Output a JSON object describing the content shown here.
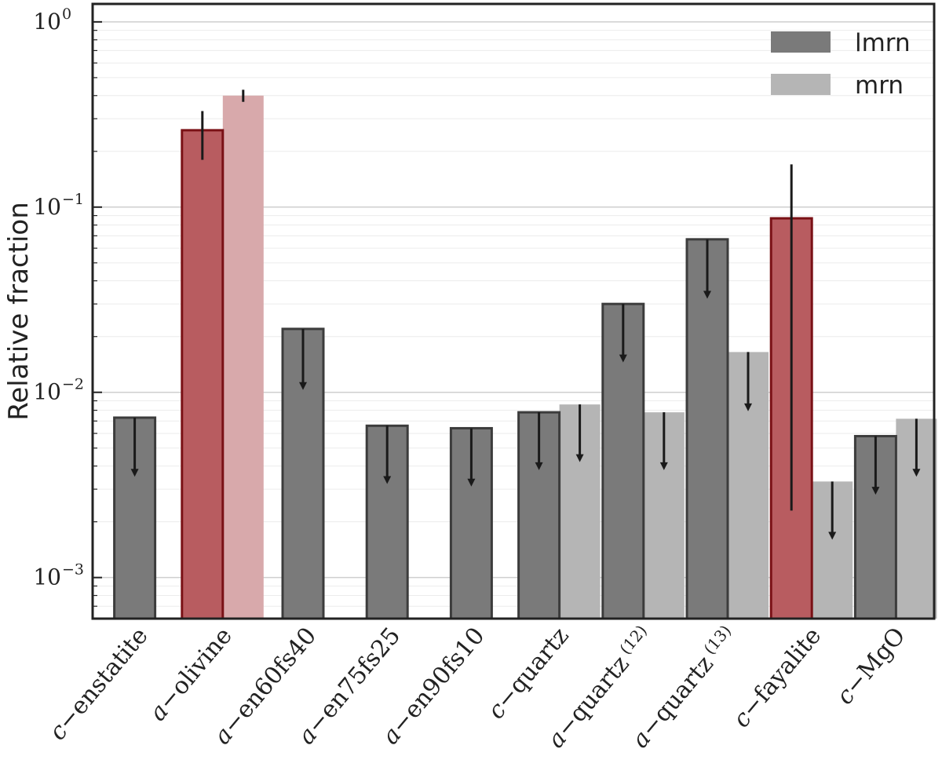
{
  "chart_data": {
    "type": "bar",
    "ylabel": "Relative fraction",
    "xlabel": "",
    "yscale": "log",
    "ylim": [
      0.0006,
      1.25
    ],
    "yticks": [
      {
        "value": 1,
        "base": "10",
        "exp": "0"
      },
      {
        "value": 0.1,
        "base": "10",
        "exp": "−1"
      },
      {
        "value": 0.01,
        "base": "10",
        "exp": "−2"
      },
      {
        "value": 0.001,
        "base": "10",
        "exp": "−3"
      }
    ],
    "grid": true,
    "legend": {
      "placement": "top-right"
    },
    "categories": [
      {
        "prefix": "c",
        "name": "enstatite",
        "sup": ""
      },
      {
        "prefix": "a",
        "name": "olivine",
        "sup": ""
      },
      {
        "prefix": "a",
        "name": "en60fs40",
        "sup": ""
      },
      {
        "prefix": "a",
        "name": "en75fs25",
        "sup": ""
      },
      {
        "prefix": "a",
        "name": "en90fs10",
        "sup": ""
      },
      {
        "prefix": "c",
        "name": "quartz",
        "sup": ""
      },
      {
        "prefix": "a",
        "name": "quartz",
        "sup": "(12)"
      },
      {
        "prefix": "a",
        "name": "quartz",
        "sup": "(13)"
      },
      {
        "prefix": "c",
        "name": "fayalite",
        "sup": ""
      },
      {
        "prefix": "c",
        "name": "MgO",
        "sup": ""
      }
    ],
    "series": [
      {
        "name": "lmrn",
        "color": "#7a7a7a",
        "edge": "#3c3c3c",
        "values": [
          0.0073,
          0.26,
          0.022,
          0.0066,
          0.0064,
          0.0078,
          0.03,
          0.067,
          0.087,
          0.0058
        ],
        "upper_limit": [
          true,
          false,
          true,
          true,
          true,
          true,
          true,
          true,
          false,
          true
        ],
        "highlight": [
          false,
          true,
          false,
          false,
          false,
          false,
          false,
          false,
          true,
          false
        ],
        "err_low": [
          null,
          0.18,
          null,
          null,
          null,
          null,
          null,
          null,
          0.0023,
          null
        ],
        "err_high": [
          null,
          0.33,
          null,
          null,
          null,
          null,
          null,
          null,
          0.17,
          null
        ],
        "arrow_to": [
          0.0035,
          null,
          0.0103,
          0.0032,
          0.0031,
          0.0038,
          0.0145,
          0.032,
          null,
          0.0028
        ]
      },
      {
        "name": "mrn",
        "color": "#b5b5b5",
        "values": [
          null,
          0.4,
          null,
          null,
          null,
          0.0086,
          0.0078,
          0.0165,
          0.0033,
          0.0072
        ],
        "upper_limit": [
          false,
          false,
          false,
          false,
          false,
          true,
          true,
          true,
          true,
          true
        ],
        "highlight": [
          false,
          true,
          false,
          false,
          false,
          false,
          false,
          false,
          false,
          false
        ],
        "err_low": [
          null,
          0.37,
          null,
          null,
          null,
          null,
          null,
          null,
          null,
          null
        ],
        "err_high": [
          null,
          0.43,
          null,
          null,
          null,
          null,
          null,
          null,
          null,
          null
        ],
        "arrow_to": [
          null,
          null,
          null,
          null,
          null,
          0.0042,
          0.0038,
          0.0079,
          0.0016,
          0.0035
        ]
      }
    ],
    "highlight_colors": {
      "lmrn_fill": "#b85c60",
      "lmrn_edge": "#7a1116",
      "mrn_fill": "#d8a9ab"
    }
  }
}
